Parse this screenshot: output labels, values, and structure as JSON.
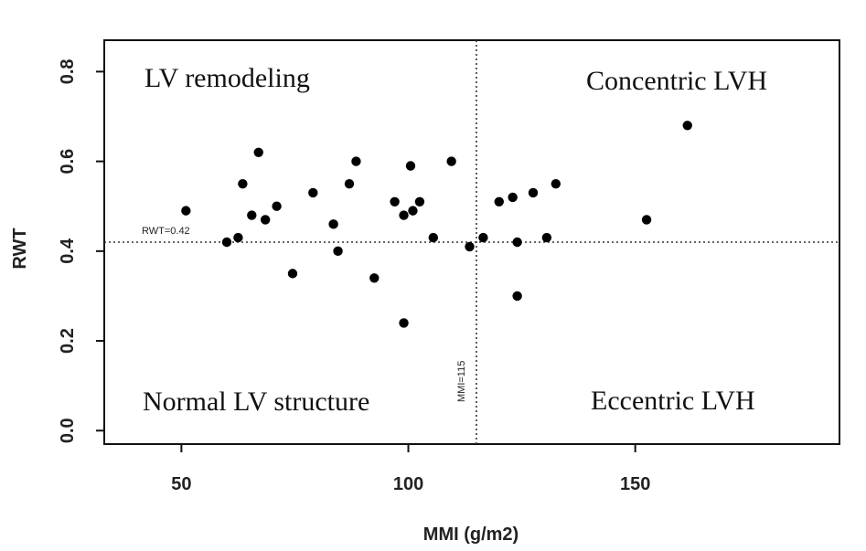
{
  "chart_data": {
    "type": "scatter",
    "title": "",
    "xlabel": "MMI (g/m2)",
    "ylabel": "RWT",
    "xlim": [
      33,
      195
    ],
    "ylim": [
      -0.03,
      0.87
    ],
    "xticks": [
      50,
      100,
      150
    ],
    "xtick_labels": [
      "50",
      "100",
      "150"
    ],
    "yticks": [
      0.0,
      0.2,
      0.4,
      0.6,
      0.8
    ],
    "ytick_labels": [
      "0.0",
      "0.2",
      "0.4",
      "0.6",
      "0.8"
    ],
    "grid": false,
    "reference_lines": {
      "horizontal": {
        "value": 0.42,
        "label": "RWT=0.42"
      },
      "vertical": {
        "value": 115,
        "label": "MMI=115"
      }
    },
    "quadrant_labels": {
      "top_left": "LV remodeling",
      "top_right": "Concentric LVH",
      "bottom_left": "Normal LV structure",
      "bottom_right": "Eccentric LVH"
    },
    "points": [
      {
        "x": 51,
        "y": 0.49
      },
      {
        "x": 60,
        "y": 0.42
      },
      {
        "x": 62.5,
        "y": 0.43
      },
      {
        "x": 63.5,
        "y": 0.55
      },
      {
        "x": 65.5,
        "y": 0.48
      },
      {
        "x": 67,
        "y": 0.62
      },
      {
        "x": 68.5,
        "y": 0.47
      },
      {
        "x": 71,
        "y": 0.5
      },
      {
        "x": 74.5,
        "y": 0.35
      },
      {
        "x": 79,
        "y": 0.53
      },
      {
        "x": 83.5,
        "y": 0.46
      },
      {
        "x": 84.5,
        "y": 0.4
      },
      {
        "x": 87,
        "y": 0.55
      },
      {
        "x": 88.5,
        "y": 0.6
      },
      {
        "x": 92.5,
        "y": 0.34
      },
      {
        "x": 97,
        "y": 0.51
      },
      {
        "x": 99,
        "y": 0.48
      },
      {
        "x": 99,
        "y": 0.24
      },
      {
        "x": 100.5,
        "y": 0.59
      },
      {
        "x": 101,
        "y": 0.49
      },
      {
        "x": 102.5,
        "y": 0.51
      },
      {
        "x": 105.5,
        "y": 0.43
      },
      {
        "x": 109.5,
        "y": 0.6
      },
      {
        "x": 113.5,
        "y": 0.41
      },
      {
        "x": 116.5,
        "y": 0.43
      },
      {
        "x": 120,
        "y": 0.51
      },
      {
        "x": 123,
        "y": 0.52
      },
      {
        "x": 124,
        "y": 0.42
      },
      {
        "x": 124,
        "y": 0.3
      },
      {
        "x": 127.5,
        "y": 0.53
      },
      {
        "x": 130.5,
        "y": 0.43
      },
      {
        "x": 132.5,
        "y": 0.55
      },
      {
        "x": 152.5,
        "y": 0.47
      },
      {
        "x": 161.5,
        "y": 0.68
      }
    ]
  }
}
